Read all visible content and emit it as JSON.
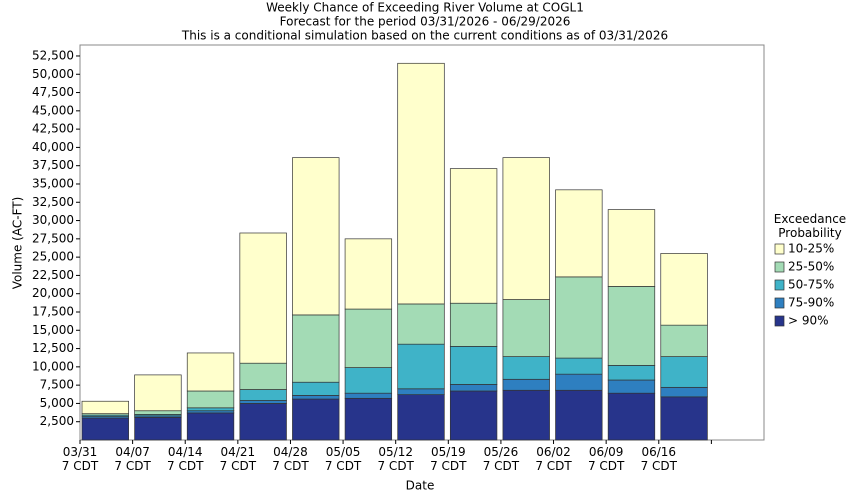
{
  "chart_data": {
    "type": "stacked-bar",
    "title": "Weekly Chance of Exceeding River Volume at COGL1",
    "subtitle": "Forecast for the period 03/31/2026 - 06/29/2026",
    "note": "This is a conditional simulation based on the current conditions as of 03/31/2026",
    "x_label": "Date",
    "y_label": "Volume (AC-FT)",
    "legend_title": "Exceedance Probability",
    "legend_position": "right",
    "grid": false,
    "categories": [
      "03/31 7 CDT",
      "04/07 7 CDT",
      "04/14 7 CDT",
      "04/21 7 CDT",
      "04/28 7 CDT",
      "05/05 7 CDT",
      "05/12 7 CDT",
      "05/19 7 CDT",
      "05/26 7 CDT",
      "06/02 7 CDT",
      "06/09 7 CDT",
      "06/16 7 CDT",
      null
    ],
    "series": [
      {
        "name": "> 90%",
        "color": "#27348b",
        "values": [
          3000,
          3100,
          3700,
          5000,
          5600,
          5700,
          6200,
          6700,
          6800,
          6800,
          6400,
          5900,
          null
        ]
      },
      {
        "name": "75-90%",
        "color": "#2e7fc0",
        "values": [
          200,
          200,
          300,
          400,
          500,
          700,
          800,
          900,
          1500,
          2200,
          1800,
          1300,
          null
        ]
      },
      {
        "name": "50-75%",
        "color": "#3fb3c8",
        "values": [
          200,
          200,
          400,
          1500,
          1800,
          3500,
          6100,
          5200,
          3100,
          2200,
          2000,
          4200,
          null
        ]
      },
      {
        "name": "25-50%",
        "color": "#a3dbb5",
        "values": [
          200,
          500,
          2300,
          3600,
          9200,
          8000,
          5500,
          5900,
          7800,
          11100,
          10800,
          4300,
          null
        ]
      },
      {
        "name": "10-25%",
        "color": "#ffffcc",
        "values": [
          1700,
          4900,
          5200,
          17800,
          21500,
          9600,
          32900,
          18400,
          19400,
          11900,
          10500,
          9800,
          null
        ]
      }
    ],
    "ylim": [
      0,
      54000
    ],
    "yticks": [
      {
        "value": 2500,
        "label": "2,500"
      },
      {
        "value": 5000,
        "label": "5,000"
      },
      {
        "value": 7500,
        "label": "7,500"
      },
      {
        "value": 10000,
        "label": "10,000"
      },
      {
        "value": 12500,
        "label": "12,500"
      },
      {
        "value": 15000,
        "label": "15,000"
      },
      {
        "value": 17500,
        "label": "17,500"
      },
      {
        "value": 20000,
        "label": "20,000"
      },
      {
        "value": 22500,
        "label": "22,500"
      },
      {
        "value": 25000,
        "label": "25,000"
      },
      {
        "value": 27500,
        "label": "27,500"
      },
      {
        "value": 30000,
        "label": "30,000"
      },
      {
        "value": 32500,
        "label": "32,500"
      },
      {
        "value": 35000,
        "label": "35,000"
      },
      {
        "value": 37500,
        "label": "37,500"
      },
      {
        "value": 40000,
        "label": "40,000"
      },
      {
        "value": 42500,
        "label": "42,500"
      },
      {
        "value": 45000,
        "label": "45,000"
      },
      {
        "value": 47500,
        "label": "47,500"
      },
      {
        "value": 50000,
        "label": "50,000"
      },
      {
        "value": 52500,
        "label": "52,500"
      }
    ]
  }
}
